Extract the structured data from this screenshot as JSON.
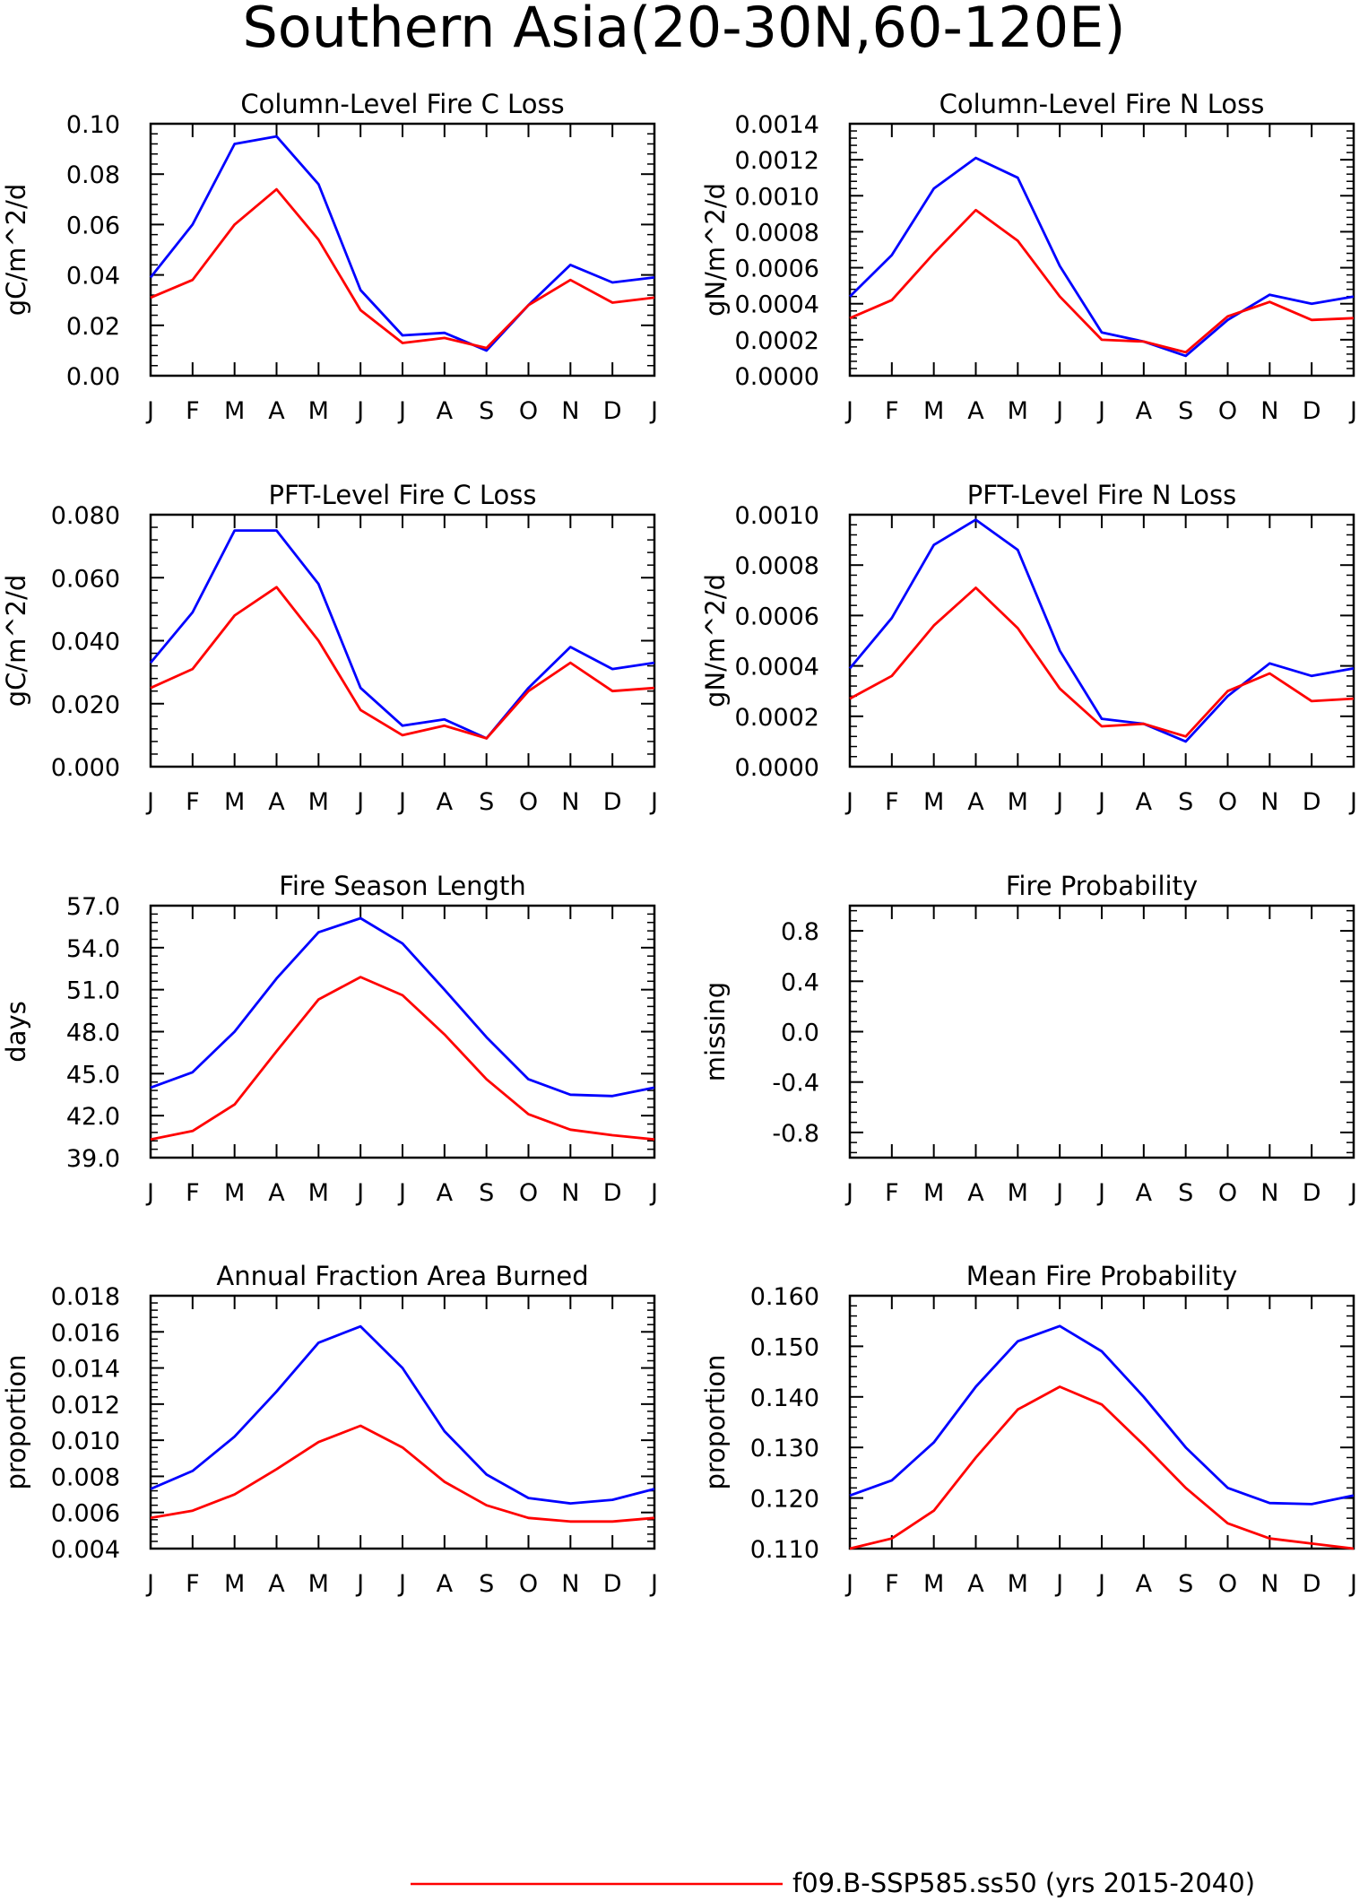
{
  "title": "Southern Asia(20-30N,60-120E)",
  "legend": {
    "entries": [
      {
        "label": "f09.B-SSP585.ss50 (yrs 2015-2040)",
        "color": "#ff0000"
      }
    ]
  },
  "chart_data": [
    {
      "type": "line",
      "title": "Column-Level Fire C Loss",
      "ylabel": "gC/m^2/d",
      "xlabel": "",
      "categories": [
        "J",
        "F",
        "M",
        "A",
        "M",
        "J",
        "J",
        "A",
        "S",
        "O",
        "N",
        "D",
        "J"
      ],
      "ylim": [
        0,
        0.1
      ],
      "yticks": [
        "0.00",
        "0.02",
        "0.04",
        "0.06",
        "0.08",
        "0.10"
      ],
      "series": [
        {
          "color": "#0000ff",
          "values": [
            0.039,
            0.06,
            0.092,
            0.095,
            0.076,
            0.034,
            0.016,
            0.017,
            0.01,
            0.028,
            0.044,
            0.037,
            0.039
          ]
        },
        {
          "color": "#ff0000",
          "values": [
            0.031,
            0.038,
            0.06,
            0.074,
            0.054,
            0.026,
            0.013,
            0.015,
            0.011,
            0.028,
            0.038,
            0.029,
            0.031
          ]
        }
      ]
    },
    {
      "type": "line",
      "title": "Column-Level Fire N Loss",
      "ylabel": "gN/m^2/d",
      "xlabel": "",
      "categories": [
        "J",
        "F",
        "M",
        "A",
        "M",
        "J",
        "J",
        "A",
        "S",
        "O",
        "N",
        "D",
        "J"
      ],
      "ylim": [
        0,
        0.0014
      ],
      "yticks": [
        "0.0000",
        "0.0002",
        "0.0004",
        "0.0006",
        "0.0008",
        "0.0010",
        "0.0012",
        "0.0014"
      ],
      "series": [
        {
          "color": "#0000ff",
          "values": [
            0.00044,
            0.00067,
            0.00104,
            0.00121,
            0.0011,
            0.00061,
            0.00024,
            0.00019,
            0.00011,
            0.00031,
            0.00045,
            0.0004,
            0.00044
          ]
        },
        {
          "color": "#ff0000",
          "values": [
            0.00032,
            0.00042,
            0.00068,
            0.00092,
            0.00075,
            0.00044,
            0.0002,
            0.00019,
            0.00013,
            0.00033,
            0.00041,
            0.00031,
            0.00032
          ]
        }
      ]
    },
    {
      "type": "line",
      "title": "PFT-Level Fire C Loss",
      "ylabel": "gC/m^2/d",
      "xlabel": "",
      "categories": [
        "J",
        "F",
        "M",
        "A",
        "M",
        "J",
        "J",
        "A",
        "S",
        "O",
        "N",
        "D",
        "J"
      ],
      "ylim": [
        0,
        0.08
      ],
      "yticks": [
        "0.000",
        "0.020",
        "0.040",
        "0.060",
        "0.080"
      ],
      "series": [
        {
          "color": "#0000ff",
          "values": [
            0.033,
            0.049,
            0.075,
            0.075,
            0.058,
            0.025,
            0.013,
            0.015,
            0.009,
            0.025,
            0.038,
            0.031,
            0.033
          ]
        },
        {
          "color": "#ff0000",
          "values": [
            0.025,
            0.031,
            0.048,
            0.057,
            0.04,
            0.018,
            0.01,
            0.013,
            0.009,
            0.024,
            0.033,
            0.024,
            0.025
          ]
        }
      ]
    },
    {
      "type": "line",
      "title": "PFT-Level Fire N Loss",
      "ylabel": "gN/m^2/d",
      "xlabel": "",
      "categories": [
        "J",
        "F",
        "M",
        "A",
        "M",
        "J",
        "J",
        "A",
        "S",
        "O",
        "N",
        "D",
        "J"
      ],
      "ylim": [
        0,
        0.001
      ],
      "yticks": [
        "0.0000",
        "0.0002",
        "0.0004",
        "0.0006",
        "0.0008",
        "0.0010"
      ],
      "series": [
        {
          "color": "#0000ff",
          "values": [
            0.00039,
            0.00059,
            0.00088,
            0.00098,
            0.00086,
            0.00046,
            0.00019,
            0.00017,
            0.0001,
            0.00028,
            0.00041,
            0.00036,
            0.00039
          ]
        },
        {
          "color": "#ff0000",
          "values": [
            0.00027,
            0.00036,
            0.00056,
            0.00071,
            0.00055,
            0.00031,
            0.00016,
            0.00017,
            0.00012,
            0.0003,
            0.00037,
            0.00026,
            0.00027
          ]
        }
      ]
    },
    {
      "type": "line",
      "title": "Fire Season Length",
      "ylabel": "days",
      "xlabel": "",
      "categories": [
        "J",
        "F",
        "M",
        "A",
        "M",
        "J",
        "J",
        "A",
        "S",
        "O",
        "N",
        "D",
        "J"
      ],
      "ylim": [
        39.0,
        57.0
      ],
      "yticks": [
        "39.0",
        "42.0",
        "45.0",
        "48.0",
        "51.0",
        "54.0",
        "57.0"
      ],
      "series": [
        {
          "color": "#0000ff",
          "values": [
            44.0,
            45.1,
            48.0,
            51.8,
            55.1,
            56.1,
            54.3,
            51.0,
            47.6,
            44.6,
            43.5,
            43.4,
            44.0
          ]
        },
        {
          "color": "#ff0000",
          "values": [
            40.3,
            40.9,
            42.8,
            46.6,
            50.3,
            51.9,
            50.6,
            47.8,
            44.6,
            42.1,
            41.0,
            40.6,
            40.3
          ]
        }
      ]
    },
    {
      "type": "line",
      "title": "Fire Probability",
      "ylabel": "missing",
      "xlabel": "",
      "categories": [
        "J",
        "F",
        "M",
        "A",
        "M",
        "J",
        "J",
        "A",
        "S",
        "O",
        "N",
        "D",
        "J"
      ],
      "ylim": [
        -1.0,
        1.0
      ],
      "yticks": [
        "-0.8",
        "-0.4",
        "0.0",
        "0.4",
        "0.8"
      ],
      "ytick_values": [
        -0.8,
        -0.4,
        0.0,
        0.4,
        0.8
      ],
      "series": []
    },
    {
      "type": "line",
      "title": "Annual Fraction Area Burned",
      "ylabel": "proportion",
      "xlabel": "",
      "categories": [
        "J",
        "F",
        "M",
        "A",
        "M",
        "J",
        "J",
        "A",
        "S",
        "O",
        "N",
        "D",
        "J"
      ],
      "ylim": [
        0.004,
        0.018
      ],
      "yticks": [
        "0.004",
        "0.006",
        "0.008",
        "0.010",
        "0.012",
        "0.014",
        "0.016",
        "0.018"
      ],
      "series": [
        {
          "color": "#0000ff",
          "values": [
            0.0073,
            0.0083,
            0.0102,
            0.0127,
            0.0154,
            0.0163,
            0.014,
            0.0105,
            0.0081,
            0.0068,
            0.0065,
            0.0067,
            0.0073
          ]
        },
        {
          "color": "#ff0000",
          "values": [
            0.0057,
            0.0061,
            0.007,
            0.0084,
            0.0099,
            0.0108,
            0.0096,
            0.0077,
            0.0064,
            0.0057,
            0.0055,
            0.0055,
            0.0057
          ]
        }
      ]
    },
    {
      "type": "line",
      "title": "Mean Fire Probability",
      "ylabel": "proportion",
      "xlabel": "",
      "categories": [
        "J",
        "F",
        "M",
        "A",
        "M",
        "J",
        "J",
        "A",
        "S",
        "O",
        "N",
        "D",
        "J"
      ],
      "ylim": [
        0.11,
        0.16
      ],
      "yticks": [
        "0.110",
        "0.120",
        "0.130",
        "0.140",
        "0.150",
        "0.160"
      ],
      "series": [
        {
          "color": "#0000ff",
          "values": [
            0.1205,
            0.1235,
            0.131,
            0.142,
            0.151,
            0.154,
            0.149,
            0.14,
            0.13,
            0.122,
            0.119,
            0.1188,
            0.1205
          ]
        },
        {
          "color": "#ff0000",
          "values": [
            0.11,
            0.112,
            0.1175,
            0.128,
            0.1375,
            0.142,
            0.1385,
            0.1305,
            0.122,
            0.115,
            0.112,
            0.111,
            0.11
          ]
        }
      ]
    }
  ]
}
